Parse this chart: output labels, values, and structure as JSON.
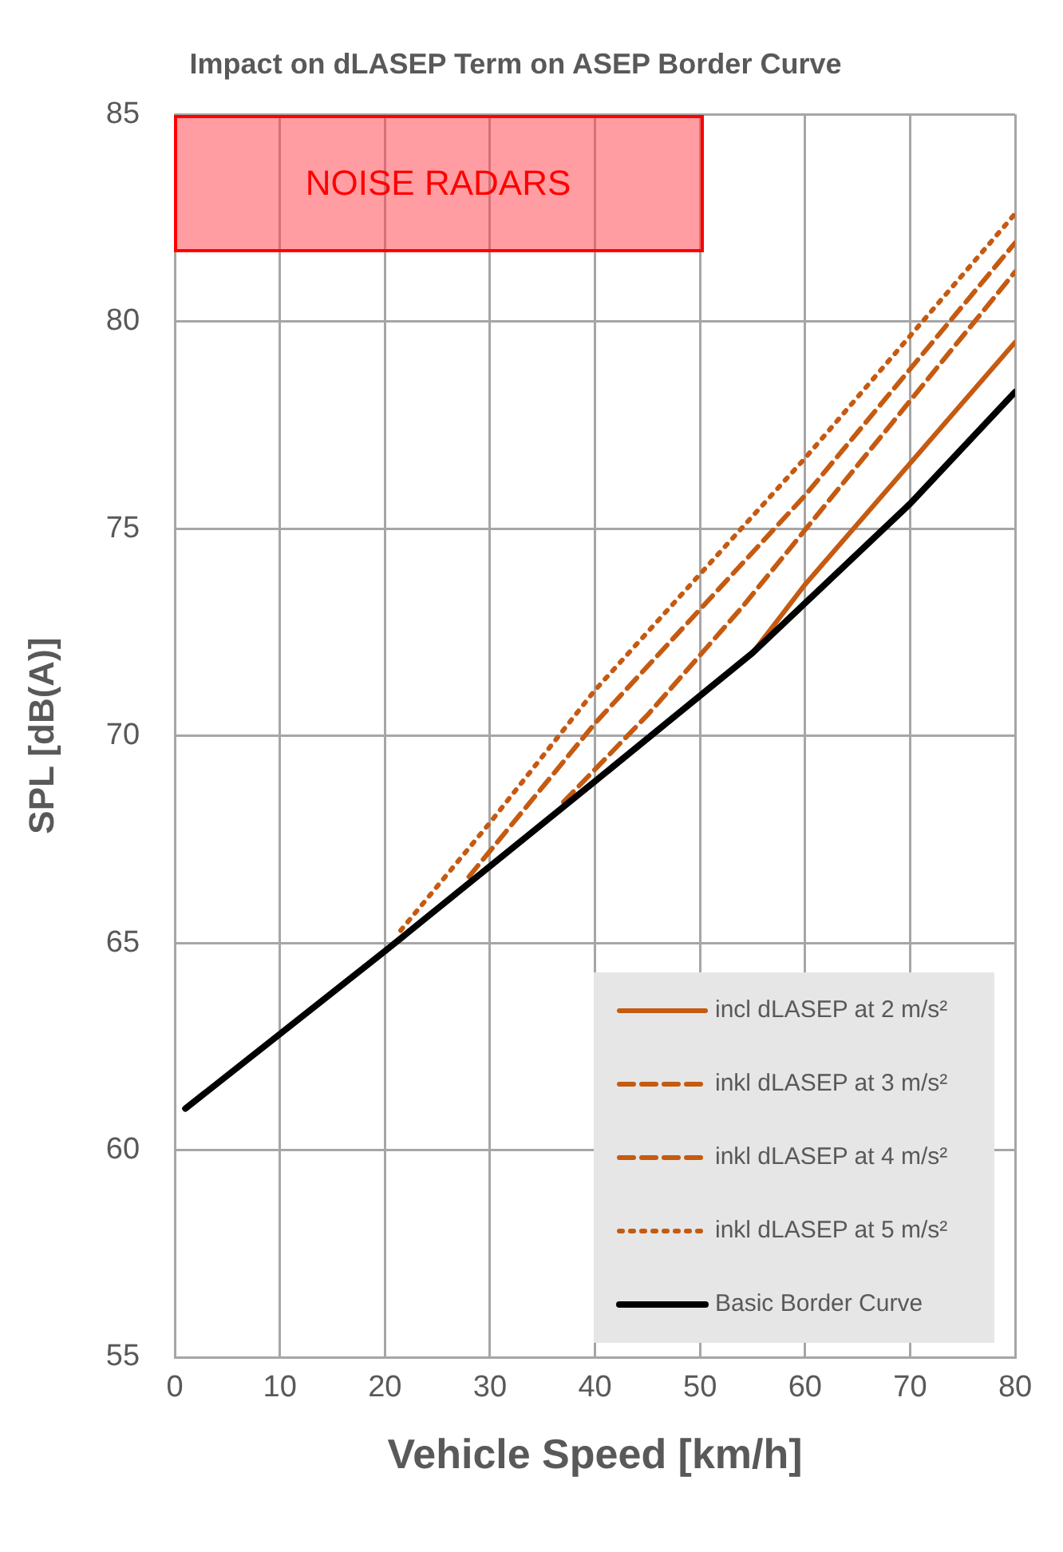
{
  "chart_data": {
    "type": "line",
    "title": "Impact on dLASEP Term on ASEP Border Curve",
    "xlabel": "Vehicle Speed [km/h]",
    "ylabel": "SPL [dB(A)]",
    "xlim": [
      0,
      80
    ],
    "xticks": [
      0,
      10,
      20,
      30,
      40,
      50,
      60,
      70,
      80
    ],
    "ylim": [
      55,
      85
    ],
    "yticks": [
      55,
      60,
      65,
      70,
      75,
      80,
      85
    ],
    "grid": true,
    "legend": "bottom right",
    "marker": "none",
    "annotations": [
      "NOISE RADARS"
    ],
    "series": [
      {
        "name": "incl dLASEP at 2 m/s²",
        "color": "#c55a11",
        "line_style": "solid",
        "x": [
          55,
          60,
          80
        ],
        "values": [
          72,
          73.65,
          79.5
        ]
      },
      {
        "name": "inkl dLASEP at 3 m/s²",
        "color": "#c55a11",
        "line_style": "dashed",
        "x": [
          37,
          45,
          54,
          80
        ],
        "values": [
          68.4,
          70.5,
          73.1,
          81.2
        ]
      },
      {
        "name": "inkl dLASEP at 4 m/s²",
        "color": "#c55a11",
        "line_style": "dashed",
        "x": [
          28,
          40,
          60,
          80
        ],
        "values": [
          66.6,
          70.3,
          75.8,
          81.9
        ]
      },
      {
        "name": "inkl dLASEP at 5 m/s²",
        "color": "#c55a11",
        "line_style": "dotted",
        "x": [
          21.5,
          30,
          40,
          60,
          80
        ],
        "values": [
          65.3,
          67.9,
          71.1,
          76.7,
          82.6
        ]
      },
      {
        "name": "Basic Border Curve",
        "color": "#000000",
        "line_style": "solid",
        "x": [
          1,
          20,
          40,
          55,
          70,
          80
        ],
        "values": [
          61,
          64.8,
          68.9,
          72,
          75.6,
          78.3
        ]
      }
    ]
  }
}
